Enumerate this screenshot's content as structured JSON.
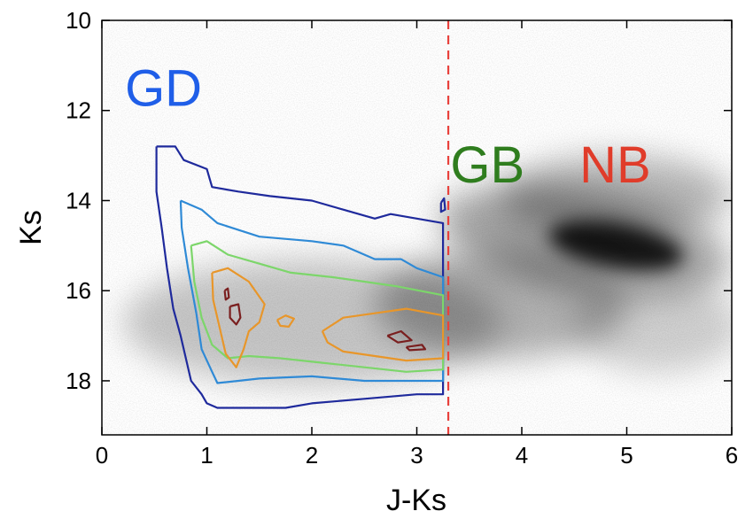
{
  "chart_data": {
    "type": "scatter",
    "title": "",
    "xlabel": "J-Ks",
    "ylabel": "Ks",
    "xlim": [
      0,
      6
    ],
    "ylim": [
      10,
      19.2
    ],
    "y_inverted": true,
    "xticks": [
      0,
      1,
      2,
      3,
      4,
      5,
      6
    ],
    "yticks": [
      10,
      12,
      14,
      16,
      18
    ],
    "grid": false,
    "divider": {
      "x": 3.3,
      "style": "dashed",
      "color": "#e8413c"
    },
    "region_labels": [
      {
        "text": "GD",
        "x": 0.22,
        "y": 11.5,
        "color": "#1f5ee8"
      },
      {
        "text": "GB",
        "x": 3.32,
        "y": 13.2,
        "color": "#2f7d1e"
      },
      {
        "text": "NB",
        "x": 4.55,
        "y": 13.2,
        "color": "#e03c2a"
      }
    ],
    "density_blobs": [
      {
        "cx": 4.9,
        "cy": 15.0,
        "rx": 0.65,
        "ry": 0.5,
        "angle": 10,
        "opacity": 0.85
      },
      {
        "cx": 4.6,
        "cy": 14.9,
        "rx": 1.4,
        "ry": 1.1,
        "angle": 10,
        "opacity": 0.35
      },
      {
        "cx": 4.9,
        "cy": 13.9,
        "rx": 1.1,
        "ry": 0.9,
        "angle": 0,
        "opacity": 0.28
      },
      {
        "cx": 3.8,
        "cy": 16.3,
        "rx": 1.2,
        "ry": 1.2,
        "angle": 0,
        "opacity": 0.3
      },
      {
        "cx": 5.3,
        "cy": 16.8,
        "rx": 0.8,
        "ry": 1.0,
        "angle": 0,
        "opacity": 0.18
      },
      {
        "cx": 2.0,
        "cy": 16.7,
        "rx": 1.8,
        "ry": 1.4,
        "angle": 0,
        "opacity": 0.22
      }
    ],
    "contours": [
      {
        "color": "#1f2a9c",
        "points": [
          [
            0.52,
            12.8
          ],
          [
            0.7,
            12.8
          ],
          [
            0.78,
            13.1
          ],
          [
            1.0,
            13.3
          ],
          [
            1.05,
            13.7
          ],
          [
            1.3,
            13.8
          ],
          [
            1.6,
            13.9
          ],
          [
            2.0,
            14.0
          ],
          [
            2.3,
            14.2
          ],
          [
            2.6,
            14.4
          ],
          [
            2.75,
            14.3
          ],
          [
            3.0,
            14.4
          ],
          [
            3.25,
            14.5
          ],
          [
            3.25,
            14.7
          ],
          [
            3.25,
            18.3
          ],
          [
            3.0,
            18.3
          ],
          [
            2.5,
            18.4
          ],
          [
            2.0,
            18.5
          ],
          [
            1.75,
            18.6
          ],
          [
            1.5,
            18.6
          ],
          [
            1.1,
            18.6
          ],
          [
            1.0,
            18.5
          ],
          [
            0.95,
            18.3
          ],
          [
            0.85,
            18.0
          ],
          [
            0.75,
            17.0
          ],
          [
            0.68,
            16.4
          ],
          [
            0.62,
            15.5
          ],
          [
            0.57,
            14.6
          ],
          [
            0.52,
            13.8
          ],
          [
            0.52,
            12.8
          ]
        ]
      },
      {
        "color": "#2f8ad6",
        "points": [
          [
            0.75,
            14.0
          ],
          [
            0.95,
            14.2
          ],
          [
            1.1,
            14.5
          ],
          [
            1.5,
            14.8
          ],
          [
            2.0,
            14.9
          ],
          [
            2.3,
            15.0
          ],
          [
            2.6,
            15.3
          ],
          [
            2.85,
            15.3
          ],
          [
            3.0,
            15.5
          ],
          [
            3.25,
            15.7
          ],
          [
            3.25,
            18.0
          ],
          [
            3.0,
            18.0
          ],
          [
            2.5,
            18.0
          ],
          [
            2.0,
            17.9
          ],
          [
            1.5,
            17.95
          ],
          [
            1.3,
            18.0
          ],
          [
            1.1,
            18.05
          ],
          [
            1.05,
            17.8
          ],
          [
            0.95,
            17.3
          ],
          [
            0.9,
            16.5
          ],
          [
            0.82,
            15.5
          ],
          [
            0.76,
            14.6
          ],
          [
            0.75,
            14.0
          ]
        ]
      },
      {
        "color": "#7cd66a",
        "points": [
          [
            0.85,
            15.0
          ],
          [
            1.0,
            14.9
          ],
          [
            1.2,
            15.2
          ],
          [
            1.5,
            15.4
          ],
          [
            1.8,
            15.6
          ],
          [
            2.2,
            15.7
          ],
          [
            2.5,
            15.8
          ],
          [
            2.8,
            15.9
          ],
          [
            3.25,
            16.1
          ],
          [
            3.25,
            17.75
          ],
          [
            2.9,
            17.8
          ],
          [
            2.5,
            17.7
          ],
          [
            2.1,
            17.6
          ],
          [
            1.7,
            17.5
          ],
          [
            1.4,
            17.45
          ],
          [
            1.2,
            17.5
          ],
          [
            1.05,
            17.2
          ],
          [
            0.95,
            16.6
          ],
          [
            0.88,
            15.8
          ],
          [
            0.85,
            15.0
          ]
        ]
      },
      {
        "color": "#e8962a",
        "points": [
          [
            1.05,
            15.6
          ],
          [
            1.2,
            15.5
          ],
          [
            1.4,
            15.8
          ],
          [
            1.55,
            16.3
          ],
          [
            1.5,
            16.7
          ],
          [
            1.4,
            16.9
          ],
          [
            1.35,
            17.3
          ],
          [
            1.28,
            17.7
          ],
          [
            1.18,
            17.4
          ],
          [
            1.12,
            16.8
          ],
          [
            1.06,
            16.2
          ],
          [
            1.05,
            15.6
          ]
        ]
      },
      {
        "color": "#e8962a",
        "points": [
          [
            2.1,
            16.9
          ],
          [
            2.3,
            16.6
          ],
          [
            2.6,
            16.5
          ],
          [
            2.9,
            16.4
          ],
          [
            3.25,
            16.55
          ],
          [
            3.25,
            17.5
          ],
          [
            2.9,
            17.55
          ],
          [
            2.6,
            17.45
          ],
          [
            2.3,
            17.35
          ],
          [
            2.15,
            17.15
          ],
          [
            2.1,
            16.9
          ]
        ]
      },
      {
        "color": "#e8962a",
        "points": [
          [
            1.67,
            16.65
          ],
          [
            1.75,
            16.55
          ],
          [
            1.83,
            16.62
          ],
          [
            1.78,
            16.8
          ],
          [
            1.7,
            16.78
          ],
          [
            1.67,
            16.65
          ]
        ]
      },
      {
        "color": "#7a1f1f",
        "points": [
          [
            1.22,
            16.35
          ],
          [
            1.3,
            16.3
          ],
          [
            1.32,
            16.6
          ],
          [
            1.28,
            16.75
          ],
          [
            1.22,
            16.6
          ],
          [
            1.22,
            16.35
          ]
        ]
      },
      {
        "color": "#7a1f1f",
        "points": [
          [
            1.17,
            16.0
          ],
          [
            1.2,
            15.95
          ],
          [
            1.21,
            16.15
          ],
          [
            1.18,
            16.2
          ],
          [
            1.17,
            16.0
          ]
        ]
      },
      {
        "color": "#7a1f1f",
        "points": [
          [
            2.72,
            17.0
          ],
          [
            2.85,
            16.9
          ],
          [
            2.95,
            17.1
          ],
          [
            2.82,
            17.15
          ],
          [
            2.72,
            17.0
          ]
        ]
      },
      {
        "color": "#7a1f1f",
        "points": [
          [
            2.9,
            17.25
          ],
          [
            3.05,
            17.2
          ],
          [
            3.08,
            17.3
          ],
          [
            2.93,
            17.32
          ],
          [
            2.9,
            17.25
          ]
        ]
      },
      {
        "color": "#1f2a9c",
        "points": [
          [
            3.23,
            14.05
          ],
          [
            3.26,
            13.95
          ],
          [
            3.27,
            14.2
          ],
          [
            3.23,
            14.25
          ],
          [
            3.23,
            14.05
          ]
        ]
      }
    ]
  }
}
